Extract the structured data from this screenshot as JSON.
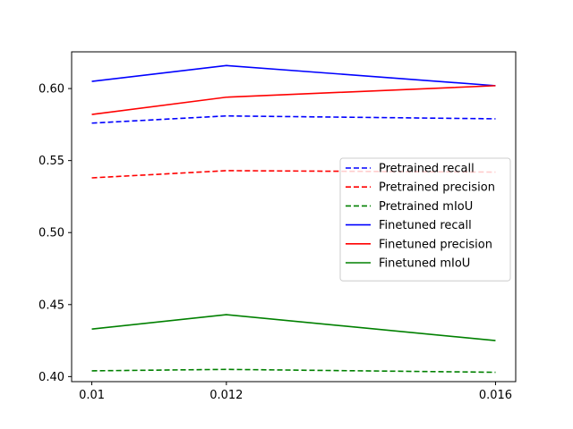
{
  "chart_data": {
    "type": "line",
    "x": [
      0.01,
      0.012,
      0.016
    ],
    "x_tick_labels": [
      "0.01",
      "0.012",
      "0.016"
    ],
    "y_ticks": [
      0.4,
      0.45,
      0.5,
      0.55,
      0.6
    ],
    "y_tick_labels": [
      "0.40",
      "0.45",
      "0.50",
      "0.55",
      "0.60"
    ],
    "ylim": [
      0.3965,
      0.6255
    ],
    "xlim": [
      0.0097,
      0.0163
    ],
    "title": "",
    "xlabel": "",
    "ylabel": "",
    "grid": false,
    "legend_placement": "center-right",
    "series": [
      {
        "name": "Pretrained recall",
        "values": [
          0.576,
          0.581,
          0.579
        ],
        "color": "#0000ff",
        "dashed": true
      },
      {
        "name": "Pretrained precision",
        "values": [
          0.538,
          0.543,
          0.542
        ],
        "color": "#ff0000",
        "dashed": true
      },
      {
        "name": "Pretrained mIoU",
        "values": [
          0.404,
          0.405,
          0.403
        ],
        "color": "#008000",
        "dashed": true
      },
      {
        "name": "Finetuned recall",
        "values": [
          0.605,
          0.616,
          0.602
        ],
        "color": "#0000ff",
        "dashed": false
      },
      {
        "name": "Finetuned precision",
        "values": [
          0.582,
          0.594,
          0.602
        ],
        "color": "#ff0000",
        "dashed": false
      },
      {
        "name": "Finetuned mIoU",
        "values": [
          0.433,
          0.443,
          0.425
        ],
        "color": "#008000",
        "dashed": false
      }
    ]
  }
}
